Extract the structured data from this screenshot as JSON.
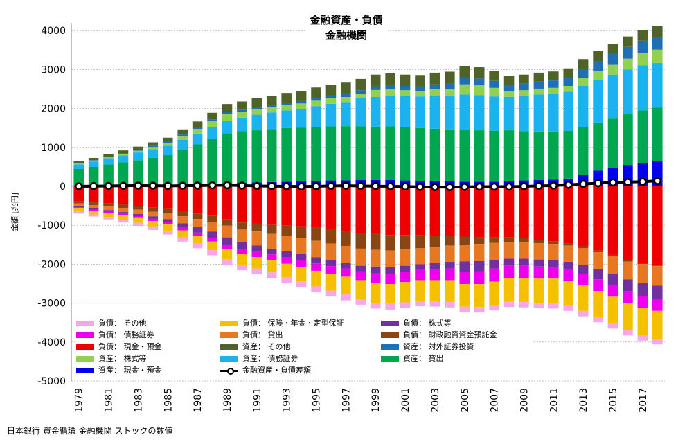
{
  "title_line1": "金融資産・負債",
  "title_line2": "金融機関",
  "y_axis_label": "金額 [兆円]",
  "source": "日本銀行 資金循環 金融機関 ストックの数値",
  "chart_data": {
    "type": "bar",
    "stacked": true,
    "grid": true,
    "ylim": [
      -5000,
      4200
    ],
    "yticks": [
      4000,
      3000,
      2000,
      1000,
      0,
      -1000,
      -2000,
      -3000,
      -4000,
      -5000
    ],
    "categories": [
      "1979",
      "1980",
      "1981",
      "1982",
      "1983",
      "1984",
      "1985",
      "1986",
      "1987",
      "1988",
      "1989",
      "1990",
      "1991",
      "1992",
      "1993",
      "1994",
      "1995",
      "1996",
      "1997",
      "1998",
      "1999",
      "2000",
      "2001",
      "2002",
      "2003",
      "2004",
      "2005",
      "2006",
      "2007",
      "2008",
      "2009",
      "2010",
      "2011",
      "2012",
      "2013",
      "2014",
      "2015",
      "2016",
      "2017",
      "2018"
    ],
    "xtick_labels": [
      "1979",
      "1981",
      "1983",
      "1985",
      "1987",
      "1989",
      "1991",
      "1993",
      "1995",
      "1997",
      "1999",
      "2001",
      "2003",
      "2005",
      "2007",
      "2009",
      "2011",
      "2013",
      "2015",
      "2017"
    ],
    "asset_series": [
      {
        "name": "資産： 現金・預金",
        "color": "#0000ee",
        "values": [
          25,
          28,
          32,
          36,
          40,
          45,
          50,
          58,
          66,
          75,
          85,
          95,
          100,
          110,
          120,
          130,
          140,
          150,
          155,
          160,
          165,
          160,
          150,
          140,
          130,
          125,
          120,
          120,
          120,
          140,
          150,
          160,
          170,
          200,
          300,
          400,
          480,
          550,
          600,
          650
        ]
      },
      {
        "name": "資産： 貸出",
        "color": "#00a650",
        "values": [
          420,
          470,
          530,
          580,
          630,
          690,
          750,
          880,
          1010,
          1150,
          1280,
          1320,
          1340,
          1360,
          1380,
          1380,
          1380,
          1390,
          1390,
          1380,
          1370,
          1380,
          1370,
          1360,
          1350,
          1340,
          1330,
          1320,
          1310,
          1300,
          1270,
          1250,
          1240,
          1230,
          1230,
          1240,
          1260,
          1300,
          1350,
          1370
        ]
      },
      {
        "name": "資産： 債務証券",
        "color": "#1ab2ef",
        "values": [
          120,
          140,
          160,
          180,
          200,
          220,
          240,
          260,
          280,
          300,
          320,
          350,
          400,
          430,
          450,
          480,
          540,
          580,
          620,
          720,
          760,
          790,
          800,
          810,
          850,
          860,
          910,
          900,
          880,
          860,
          900,
          950,
          980,
          1000,
          1050,
          1100,
          1130,
          1150,
          1160,
          1150
        ]
      },
      {
        "name": "資産： 株式等",
        "color": "#92d050",
        "values": [
          20,
          25,
          30,
          35,
          45,
          55,
          70,
          100,
          120,
          150,
          180,
          150,
          140,
          130,
          140,
          140,
          140,
          140,
          130,
          120,
          180,
          170,
          150,
          140,
          160,
          170,
          260,
          260,
          220,
          140,
          150,
          150,
          140,
          150,
          200,
          220,
          250,
          280,
          320,
          340
        ]
      },
      {
        "name": "資産： 対外証券投資",
        "color": "#1f6fb4",
        "values": [
          10,
          12,
          14,
          16,
          20,
          25,
          30,
          35,
          40,
          45,
          50,
          55,
          60,
          60,
          60,
          60,
          70,
          80,
          90,
          90,
          95,
          100,
          110,
          120,
          130,
          140,
          160,
          170,
          180,
          170,
          170,
          180,
          190,
          210,
          240,
          260,
          280,
          300,
          310,
          320
        ]
      },
      {
        "name": "資産： その他",
        "color": "#4f6228",
        "values": [
          45,
          55,
          65,
          75,
          85,
          95,
          110,
          130,
          150,
          170,
          200,
          210,
          220,
          230,
          250,
          260,
          270,
          270,
          280,
          290,
          300,
          300,
          290,
          290,
          300,
          310,
          310,
          290,
          250,
          230,
          230,
          230,
          230,
          240,
          250,
          260,
          260,
          270,
          280,
          290
        ]
      }
    ],
    "liability_series": [
      {
        "name": "負債： 現金・預金",
        "color": "#ee0000",
        "values": [
          380,
          410,
          440,
          470,
          500,
          540,
          580,
          640,
          700,
          760,
          850,
          930,
          960,
          990,
          1010,
          1030,
          1060,
          1100,
          1140,
          1200,
          1220,
          1250,
          1250,
          1260,
          1270,
          1270,
          1290,
          1300,
          1300,
          1310,
          1330,
          1380,
          1410,
          1460,
          1540,
          1650,
          1760,
          1900,
          1970,
          2030
        ]
      },
      {
        "name": "負債： 財政融資資金預託金",
        "color": "#8b4513",
        "values": [
          60,
          70,
          80,
          90,
          100,
          110,
          120,
          130,
          140,
          150,
          160,
          180,
          200,
          230,
          260,
          300,
          340,
          370,
          390,
          400,
          410,
          400,
          370,
          330,
          290,
          250,
          210,
          180,
          150,
          120,
          100,
          80,
          70,
          60,
          50,
          40,
          35,
          30,
          25,
          20
        ]
      },
      {
        "name": "負債： 貸出",
        "color": "#e87722",
        "values": [
          70,
          80,
          90,
          100,
          110,
          120,
          140,
          180,
          210,
          250,
          300,
          330,
          360,
          380,
          400,
          410,
          420,
          420,
          430,
          440,
          430,
          430,
          420,
          410,
          410,
          420,
          430,
          440,
          440,
          430,
          430,
          420,
          420,
          420,
          430,
          440,
          450,
          460,
          480,
          500
        ]
      },
      {
        "name": "負債： 株式等",
        "color": "#7030a0",
        "values": [
          30,
          35,
          40,
          45,
          55,
          65,
          80,
          110,
          140,
          170,
          200,
          170,
          160,
          150,
          160,
          160,
          160,
          160,
          150,
          140,
          180,
          170,
          150,
          130,
          150,
          170,
          260,
          260,
          220,
          170,
          180,
          180,
          170,
          180,
          230,
          260,
          290,
          310,
          340,
          350
        ]
      },
      {
        "name": "負債： 債務証券",
        "color": "#ee00ee",
        "values": [
          30,
          35,
          40,
          45,
          50,
          55,
          60,
          70,
          80,
          90,
          110,
          130,
          140,
          150,
          160,
          170,
          190,
          200,
          210,
          230,
          250,
          260,
          270,
          280,
          290,
          300,
          320,
          330,
          340,
          330,
          320,
          310,
          300,
          300,
          300,
          300,
          300,
          300,
          300,
          300
        ]
      },
      {
        "name": "負債： 保険・年金・定型保証",
        "color": "#f5c000",
        "values": [
          80,
          90,
          100,
          110,
          120,
          140,
          160,
          180,
          200,
          220,
          250,
          270,
          290,
          310,
          340,
          370,
          400,
          430,
          460,
          480,
          500,
          510,
          520,
          530,
          540,
          560,
          580,
          590,
          600,
          600,
          610,
          620,
          630,
          640,
          650,
          660,
          680,
          690,
          710,
          720
        ]
      },
      {
        "name": "負債： その他",
        "color": "#f7a6e8",
        "values": [
          50,
          55,
          60,
          70,
          80,
          90,
          100,
          110,
          120,
          130,
          140,
          145,
          150,
          150,
          150,
          150,
          150,
          150,
          150,
          150,
          150,
          150,
          145,
          140,
          140,
          140,
          140,
          140,
          140,
          140,
          140,
          140,
          140,
          140,
          140,
          140,
          140,
          140,
          140,
          140
        ]
      }
    ],
    "net_series": {
      "name": "金融資産・負債差額",
      "color": "#000000",
      "values": [
        0,
        5,
        10,
        15,
        18,
        15,
        12,
        15,
        20,
        25,
        30,
        20,
        10,
        5,
        0,
        -5,
        0,
        10,
        15,
        10,
        5,
        0,
        -5,
        -15,
        -20,
        -20,
        -15,
        -10,
        -10,
        -10,
        0,
        10,
        20,
        40,
        60,
        80,
        100,
        110,
        120,
        140
      ]
    },
    "legend": {
      "placement": "bottom-left",
      "columns": [
        [
          "負債： その他",
          "負債： 債務証券",
          "負債： 現金・預金",
          "資産： 株式等",
          "資産： 現金・預金"
        ],
        [
          "負債： 保険・年金・定型保証",
          "負債： 貸出",
          "資産： その他",
          "資産： 債務証券",
          "金融資産・負債差額"
        ],
        [
          "負債： 株式等",
          "負債： 財政融資資金預託金",
          "資産： 対外証券投資",
          "資産： 貸出"
        ]
      ]
    }
  }
}
